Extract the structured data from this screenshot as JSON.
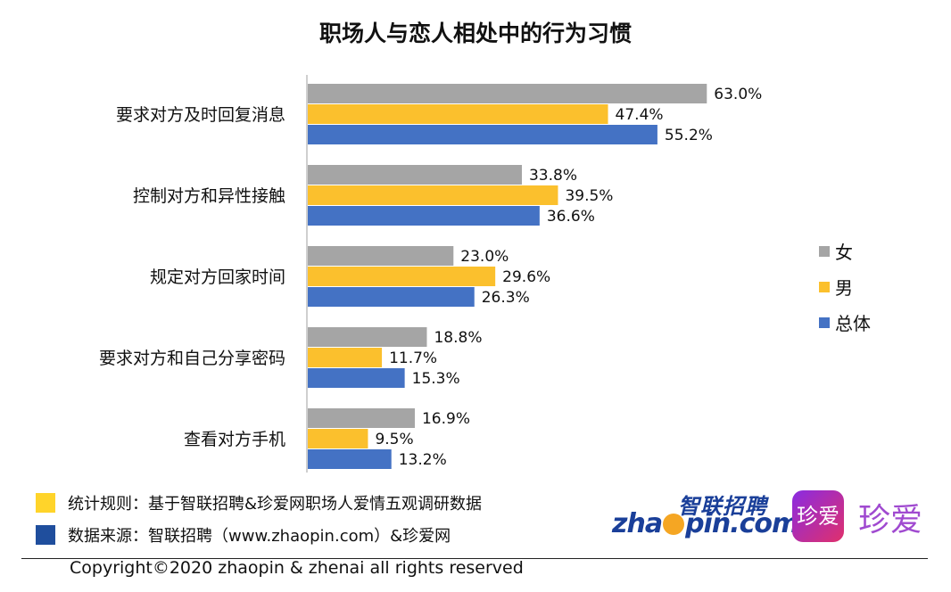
{
  "colors": {
    "female": "#a5a5a5",
    "male": "#fbc02d",
    "total": "#4472c4",
    "axis": "#bfbfbf",
    "note_yellow": "#ffd42a",
    "note_blue": "#1f4e9d"
  },
  "chart_data": {
    "type": "bar",
    "orientation": "horizontal",
    "title": "职场人与恋人相处中的行为习惯",
    "categories": [
      "要求对方及时回复消息",
      "控制对方和异性接触",
      "规定对方回家时间",
      "要求对方和自己分享密码",
      "查看对方手机"
    ],
    "series": [
      {
        "name": "女",
        "color": "#a5a5a5",
        "values": [
          63.0,
          33.8,
          23.0,
          18.8,
          16.9
        ],
        "labels": [
          "63.0%",
          "33.8%",
          "23.0%",
          "18.8%",
          "16.9%"
        ]
      },
      {
        "name": "男",
        "color": "#fbc02d",
        "values": [
          47.4,
          39.5,
          29.6,
          11.7,
          9.5
        ],
        "labels": [
          "47.4%",
          "39.5%",
          "29.6%",
          "11.7%",
          "9.5%"
        ]
      },
      {
        "name": "总体",
        "color": "#4472c4",
        "values": [
          55.2,
          36.6,
          26.3,
          15.3,
          13.2
        ],
        "labels": [
          "55.2%",
          "36.6%",
          "26.3%",
          "15.3%",
          "13.2%"
        ]
      }
    ],
    "unit": "%",
    "legend_position": "right",
    "grid": false
  },
  "notes": {
    "stat_rule": "统计规则：基于智联招聘&珍爱网职场人爱情五观调研数据",
    "data_source": "数据来源：智联招聘（www.zhaopin.com）&珍爱网"
  },
  "logos": {
    "zhaopin_cn": "智联招聘",
    "zhaopin_en_left": "zha",
    "zhaopin_en_right": "pin.com",
    "zhenai_box": "珍爱",
    "zhenai_text": "珍爱"
  },
  "copyright": "Copyright©2020 zhaopin & zhenai  all rights reserved"
}
